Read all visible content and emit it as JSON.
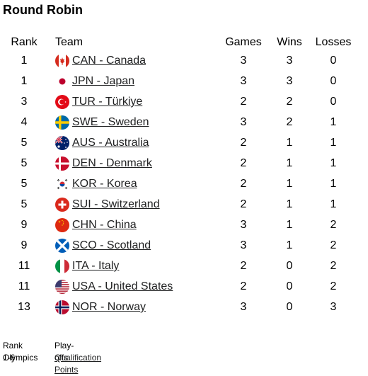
{
  "title": "Round Robin",
  "headers": {
    "rank": "Rank",
    "team": "Team",
    "games": "Games",
    "wins": "Wins",
    "losses": "Losses"
  },
  "rows": [
    {
      "rank": "1",
      "team": "CAN - Canada",
      "flag_icon": "canada-flag-icon",
      "games": "3",
      "wins": "3",
      "losses": "0"
    },
    {
      "rank": "1",
      "team": "JPN - Japan",
      "flag_icon": "japan-flag-icon",
      "games": "3",
      "wins": "3",
      "losses": "0"
    },
    {
      "rank": "3",
      "team": "TUR - Türkiye",
      "flag_icon": "turkiye-flag-icon",
      "games": "2",
      "wins": "2",
      "losses": "0"
    },
    {
      "rank": "4",
      "team": "SWE - Sweden",
      "flag_icon": "sweden-flag-icon",
      "games": "3",
      "wins": "2",
      "losses": "1"
    },
    {
      "rank": "5",
      "team": "AUS - Australia",
      "flag_icon": "australia-flag-icon",
      "games": "2",
      "wins": "1",
      "losses": "1"
    },
    {
      "rank": "5",
      "team": "DEN - Denmark",
      "flag_icon": "denmark-flag-icon",
      "games": "2",
      "wins": "1",
      "losses": "1"
    },
    {
      "rank": "5",
      "team": "KOR - Korea",
      "flag_icon": "korea-flag-icon",
      "games": "2",
      "wins": "1",
      "losses": "1"
    },
    {
      "rank": "5",
      "team": "SUI - Switzerland",
      "flag_icon": "switzerland-flag-icon",
      "games": "2",
      "wins": "1",
      "losses": "1"
    },
    {
      "rank": "9",
      "team": "CHN - China",
      "flag_icon": "china-flag-icon",
      "games": "3",
      "wins": "1",
      "losses": "2"
    },
    {
      "rank": "9",
      "team": "SCO - Scotland",
      "flag_icon": "scotland-flag-icon",
      "games": "3",
      "wins": "1",
      "losses": "2"
    },
    {
      "rank": "11",
      "team": "ITA - Italy",
      "flag_icon": "italy-flag-icon",
      "games": "2",
      "wins": "0",
      "losses": "2"
    },
    {
      "rank": "11",
      "team": "USA - United States",
      "flag_icon": "usa-flag-icon",
      "games": "2",
      "wins": "0",
      "losses": "2"
    },
    {
      "rank": "13",
      "team": "NOR - Norway",
      "flag_icon": "norway-flag-icon",
      "games": "3",
      "wins": "0",
      "losses": "3"
    }
  ],
  "legend": [
    {
      "label": "Rank 1-6",
      "value": "Play-offs",
      "link": false
    },
    {
      "label": "Olympics",
      "value": "Qualification Points",
      "link": true
    }
  ],
  "colors": {
    "link_text": "#202122"
  }
}
